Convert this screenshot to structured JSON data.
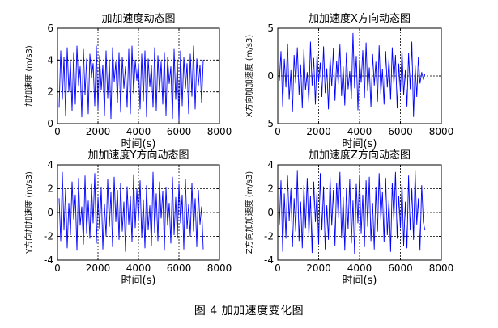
{
  "figure_caption": "图 4  加加速度变化图",
  "chart_data": [
    {
      "type": "line",
      "title": "加加速度动态图",
      "xlabel": "时间(s)",
      "ylabel": "加加速度 (m/s3)",
      "xlim": [
        0,
        8000
      ],
      "ylim": [
        0,
        6
      ],
      "xticks": [
        0,
        2000,
        4000,
        6000,
        8000
      ],
      "yticks": [
        0,
        2,
        4,
        6
      ],
      "grid": "dashed",
      "line_color": "#0000ff",
      "x": [
        80,
        160,
        240,
        320,
        400,
        480,
        560,
        640,
        720,
        800,
        880,
        960,
        1040,
        1120,
        1200,
        1280,
        1360,
        1440,
        1520,
        1600,
        1680,
        1760,
        1840,
        1920,
        2000,
        2080,
        2160,
        2240,
        2320,
        2400,
        2480,
        2560,
        2640,
        2720,
        2800,
        2880,
        2960,
        3040,
        3120,
        3200,
        3280,
        3360,
        3440,
        3520,
        3600,
        3680,
        3760,
        3840,
        3920,
        4000,
        4080,
        4160,
        4240,
        4320,
        4400,
        4480,
        4560,
        4640,
        4720,
        4800,
        4880,
        4960,
        5040,
        5120,
        5200,
        5280,
        5360,
        5440,
        5520,
        5600,
        5680,
        5760,
        5840,
        5920,
        6000,
        6080,
        6160,
        6240,
        6320,
        6400,
        6480,
        6560,
        6640,
        6720,
        6800,
        6880,
        6960,
        7040,
        7120,
        7200
      ],
      "values": [
        1.0,
        4.6,
        1.5,
        4.2,
        0.5,
        4.8,
        2.0,
        3.9,
        0.8,
        4.5,
        1.2,
        4.9,
        2.4,
        3.6,
        0.4,
        4.7,
        1.8,
        4.1,
        0.6,
        4.4,
        2.9,
        3.8,
        1.1,
        4.9,
        0.9,
        4.3,
        2.1,
        3.7,
        0.5,
        4.6,
        1.6,
        4.0,
        0.3,
        4.8,
        2.6,
        3.9,
        1.3,
        4.5,
        0.7,
        4.2,
        2.2,
        3.6,
        1.0,
        4.7,
        0.6,
        4.9,
        1.9,
        4.0,
        2.7,
        3.8,
        0.9,
        4.4,
        1.4,
        4.6,
        0.4,
        4.1,
        2.3,
        3.7,
        1.0,
        4.8,
        0.8,
        4.3,
        2.0,
        3.9,
        1.2,
        4.5,
        0.5,
        4.2,
        2.5,
        3.6,
        0.3,
        4.7,
        1.5,
        4.0,
        0.1,
        4.6,
        1.1,
        4.2,
        2.2,
        3.8,
        0.6,
        4.4,
        1.7,
        4.9,
        0.9,
        4.1,
        2.4,
        3.7,
        1.3,
        4.0
      ]
    },
    {
      "type": "line",
      "title": "加加速度X方向动态图",
      "xlabel": "时间(s)",
      "ylabel": "X方向加加速度 (m/s3)",
      "xlim": [
        0,
        8000
      ],
      "ylim": [
        -5,
        5
      ],
      "xticks": [
        0,
        2000,
        4000,
        6000,
        8000
      ],
      "yticks": [
        -5,
        0,
        5
      ],
      "grid": "dashed",
      "line_color": "#0000ff",
      "x": [
        80,
        160,
        240,
        320,
        400,
        480,
        560,
        640,
        720,
        800,
        880,
        960,
        1040,
        1120,
        1200,
        1280,
        1360,
        1440,
        1520,
        1600,
        1680,
        1760,
        1840,
        1920,
        2000,
        2080,
        2160,
        2240,
        2320,
        2400,
        2480,
        2560,
        2640,
        2720,
        2800,
        2880,
        2960,
        3040,
        3120,
        3200,
        3280,
        3360,
        3440,
        3520,
        3600,
        3680,
        3760,
        3840,
        3920,
        4000,
        4080,
        4160,
        4240,
        4320,
        4400,
        4480,
        4560,
        4640,
        4720,
        4800,
        4880,
        4960,
        5040,
        5120,
        5200,
        5280,
        5360,
        5440,
        5520,
        5600,
        5680,
        5760,
        5840,
        5920,
        6000,
        6080,
        6160,
        6240,
        6320,
        6400,
        6480,
        6560,
        6640,
        6720,
        6800,
        6880,
        6960,
        7040,
        7120,
        7200
      ],
      "values": [
        -0.5,
        2.6,
        -3.2,
        1.8,
        -1.2,
        3.4,
        -2.5,
        0.6,
        -3.8,
        2.2,
        -0.8,
        3.0,
        -2.0,
        1.2,
        -3.4,
        2.8,
        -1.5,
        0.4,
        -2.8,
        3.6,
        -1.0,
        1.9,
        -3.0,
        2.4,
        -0.6,
        1.4,
        -2.2,
        3.1,
        -1.8,
        0.8,
        -3.5,
        2.0,
        -1.1,
        2.9,
        -2.6,
        1.6,
        -0.9,
        3.3,
        -2.1,
        1.0,
        -3.1,
        2.5,
        -1.4,
        0.5,
        -2.4,
        4.5,
        -1.3,
        2.1,
        -3.6,
        1.7,
        -0.7,
        2.7,
        -2.3,
        3.5,
        -1.6,
        0.9,
        -3.3,
        2.3,
        -1.0,
        1.5,
        -2.7,
        3.2,
        -1.9,
        0.7,
        -3.0,
        2.6,
        -1.2,
        1.8,
        -2.5,
        3.0,
        -0.9,
        2.2,
        -3.4,
        1.3,
        -1.7,
        2.8,
        -2.0,
        0.6,
        -3.2,
        2.4,
        -1.4,
        3.6,
        -4.3,
        1.1,
        -2.2,
        2.0,
        -0.8,
        0.4,
        -0.3,
        0.2
      ]
    },
    {
      "type": "line",
      "title": "加加速度Y方向动态图",
      "xlabel": "时间(s)",
      "ylabel": "Y方向加加速度 (m/s3)",
      "xlim": [
        0,
        8000
      ],
      "ylim": [
        -4,
        4
      ],
      "xticks": [
        0,
        2000,
        4000,
        6000,
        8000
      ],
      "yticks": [
        -4,
        -2,
        0,
        2,
        4
      ],
      "grid": "dashed",
      "line_color": "#0000ff",
      "x": [
        80,
        160,
        240,
        320,
        400,
        480,
        560,
        640,
        720,
        800,
        880,
        960,
        1040,
        1120,
        1200,
        1280,
        1360,
        1440,
        1520,
        1600,
        1680,
        1760,
        1840,
        1920,
        2000,
        2080,
        2160,
        2240,
        2320,
        2400,
        2480,
        2560,
        2640,
        2720,
        2800,
        2880,
        2960,
        3040,
        3120,
        3200,
        3280,
        3360,
        3440,
        3520,
        3600,
        3680,
        3760,
        3840,
        3920,
        4000,
        4080,
        4160,
        4240,
        4320,
        4400,
        4480,
        4560,
        4640,
        4720,
        4800,
        4880,
        4960,
        5040,
        5120,
        5200,
        5280,
        5360,
        5440,
        5520,
        5600,
        5680,
        5760,
        5840,
        5920,
        6000,
        6080,
        6160,
        6240,
        6320,
        6400,
        6480,
        6560,
        6640,
        6720,
        6800,
        6880,
        6960,
        7040,
        7120,
        7200
      ],
      "values": [
        1.2,
        -2.4,
        3.4,
        -1.5,
        2.0,
        -3.0,
        0.8,
        -1.9,
        2.6,
        -0.6,
        1.5,
        -3.2,
        2.9,
        -1.1,
        0.5,
        -2.7,
        3.1,
        -1.8,
        1.0,
        -2.2,
        2.4,
        -0.9,
        3.3,
        -2.6,
        1.3,
        -1.4,
        2.1,
        -3.1,
        0.7,
        -2.0,
        2.8,
        -1.2,
        1.7,
        -2.9,
        3.0,
        -0.8,
        1.9,
        -2.3,
        2.5,
        -1.6,
        0.9,
        -3.3,
        2.2,
        -1.0,
        1.4,
        -2.5,
        3.2,
        -1.3,
        2.0,
        -0.7,
        2.7,
        -2.1,
        1.1,
        -3.0,
        2.3,
        -1.5,
        0.6,
        -2.8,
        3.4,
        -1.7,
        1.6,
        -2.4,
        2.6,
        -0.5,
        1.8,
        -3.2,
        2.1,
        -1.1,
        0.8,
        -2.6,
        3.0,
        -1.9,
        1.3,
        -2.2,
        2.4,
        -0.9,
        1.5,
        -3.1,
        2.8,
        -1.4,
        0.7,
        -2.0,
        2.5,
        -1.6,
        1.2,
        -2.9,
        1.9,
        -1.0,
        0.5,
        -3.1
      ]
    },
    {
      "type": "line",
      "title": "加加速度Z方向动态图",
      "xlabel": "时间(s)",
      "ylabel": "Z方向加加速度 (m/s3)",
      "xlim": [
        0,
        8000
      ],
      "ylim": [
        -4,
        4
      ],
      "xticks": [
        0,
        2000,
        4000,
        6000,
        8000
      ],
      "yticks": [
        -4,
        -2,
        0,
        2,
        4
      ],
      "grid": "dashed",
      "line_color": "#0000ff",
      "x": [
        80,
        160,
        240,
        320,
        400,
        480,
        560,
        640,
        720,
        800,
        880,
        960,
        1040,
        1120,
        1200,
        1280,
        1360,
        1440,
        1520,
        1600,
        1680,
        1760,
        1840,
        1920,
        2000,
        2080,
        2160,
        2240,
        2320,
        2400,
        2480,
        2560,
        2640,
        2720,
        2800,
        2880,
        2960,
        3040,
        3120,
        3200,
        3280,
        3360,
        3440,
        3520,
        3600,
        3680,
        3760,
        3840,
        3920,
        4000,
        4080,
        4160,
        4240,
        4320,
        4400,
        4480,
        4560,
        4640,
        4720,
        4800,
        4880,
        4960,
        5040,
        5120,
        5200,
        5280,
        5360,
        5440,
        5520,
        5600,
        5680,
        5760,
        5840,
        5920,
        6000,
        6080,
        6160,
        6240,
        6320,
        6400,
        6480,
        6560,
        6640,
        6720,
        6800,
        6880,
        6960,
        7040,
        7120,
        7200
      ],
      "values": [
        -1.0,
        2.7,
        -3.3,
        1.6,
        -2.2,
        3.1,
        -0.7,
        2.0,
        -2.9,
        1.2,
        -1.6,
        3.5,
        -2.4,
        0.9,
        -3.0,
        2.3,
        -1.3,
        2.9,
        -2.0,
        1.4,
        -3.4,
        2.6,
        -0.8,
        1.8,
        -2.7,
        3.3,
        -1.5,
        2.2,
        -3.1,
        0.6,
        -2.3,
        3.0,
        -1.1,
        1.9,
        -2.8,
        2.5,
        -0.5,
        3.4,
        -2.1,
        1.3,
        -3.2,
        2.0,
        -1.4,
        2.8,
        -2.6,
        1.0,
        -3.5,
        2.4,
        -0.9,
        3.2,
        -1.8,
        1.5,
        -2.9,
        2.7,
        -1.2,
        3.0,
        -2.4,
        0.8,
        -3.1,
        2.1,
        -1.6,
        3.3,
        -0.6,
        1.7,
        -2.5,
        2.9,
        -1.9,
        1.1,
        -3.3,
        2.5,
        -0.7,
        3.4,
        -2.2,
        1.4,
        -1.3,
        2.6,
        -2.8,
        0.9,
        -3.0,
        3.1,
        -1.5,
        2.0,
        -2.3,
        3.5,
        -1.0,
        1.2,
        -3.2,
        2.3,
        -0.8,
        -1.5
      ]
    }
  ]
}
